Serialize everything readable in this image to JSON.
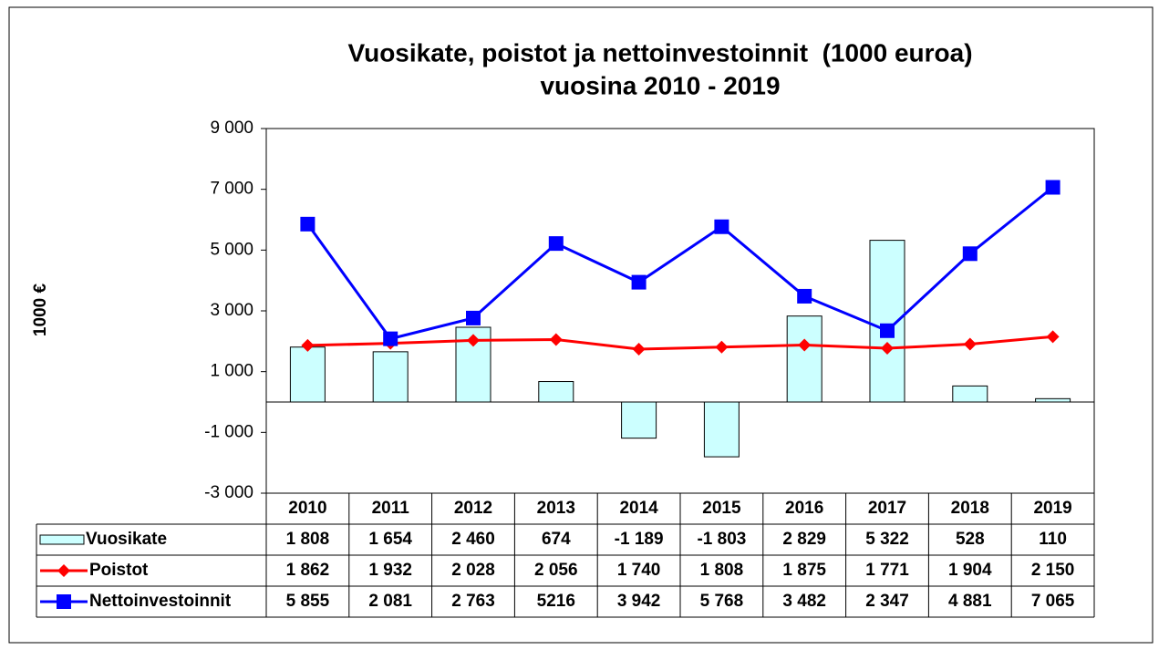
{
  "chart_data": {
    "type": "bar",
    "title": "Vuosikate, poistot ja nettoinvestoinnit  (1000 euroa)",
    "subtitle": "vuosina 2010 - 2019",
    "y_label": "1000 €",
    "categories": [
      "2010",
      "2011",
      "2012",
      "2013",
      "2014",
      "2015",
      "2016",
      "2017",
      "2018",
      "2019"
    ],
    "series": [
      {
        "name": "Vuosikate",
        "type": "bar",
        "color": "#ccffff",
        "values": [
          1808,
          1654,
          2460,
          674,
          -1189,
          -1803,
          2829,
          5322,
          528,
          110
        ],
        "value_labels": [
          "1 808",
          "1 654",
          "2 460",
          "674",
          "-1 189",
          "-1 803",
          "2 829",
          "5 322",
          "528",
          "110"
        ]
      },
      {
        "name": "Poistot",
        "type": "line",
        "marker": "diamond",
        "color": "#ff0000",
        "values": [
          1862,
          1932,
          2028,
          2056,
          1740,
          1808,
          1875,
          1771,
          1904,
          2150
        ],
        "value_labels": [
          "1 862",
          "1 932",
          "2 028",
          "2 056",
          "1 740",
          "1 808",
          "1 875",
          "1 771",
          "1 904",
          "2 150"
        ]
      },
      {
        "name": "Nettoinvestoinnit",
        "type": "line",
        "marker": "square",
        "color": "#0000ff",
        "values": [
          5855,
          2081,
          2763,
          5216,
          3942,
          5768,
          3482,
          2347,
          4881,
          7065
        ],
        "value_labels": [
          "5 855",
          "2 081",
          "2 763",
          "5216",
          "3 942",
          "5 768",
          "3 482",
          "2 347",
          "4 881",
          "7 065"
        ]
      }
    ],
    "ylim": [
      -3000,
      9000
    ],
    "yticks": [
      {
        "value": -3000,
        "label": "-3 000"
      },
      {
        "value": -1000,
        "label": "-1 000"
      },
      {
        "value": 1000,
        "label": "1 000"
      },
      {
        "value": 3000,
        "label": "3 000"
      },
      {
        "value": 5000,
        "label": "5 000"
      },
      {
        "value": 7000,
        "label": "7 000"
      },
      {
        "value": 9000,
        "label": "9 000"
      }
    ],
    "grid": false
  }
}
